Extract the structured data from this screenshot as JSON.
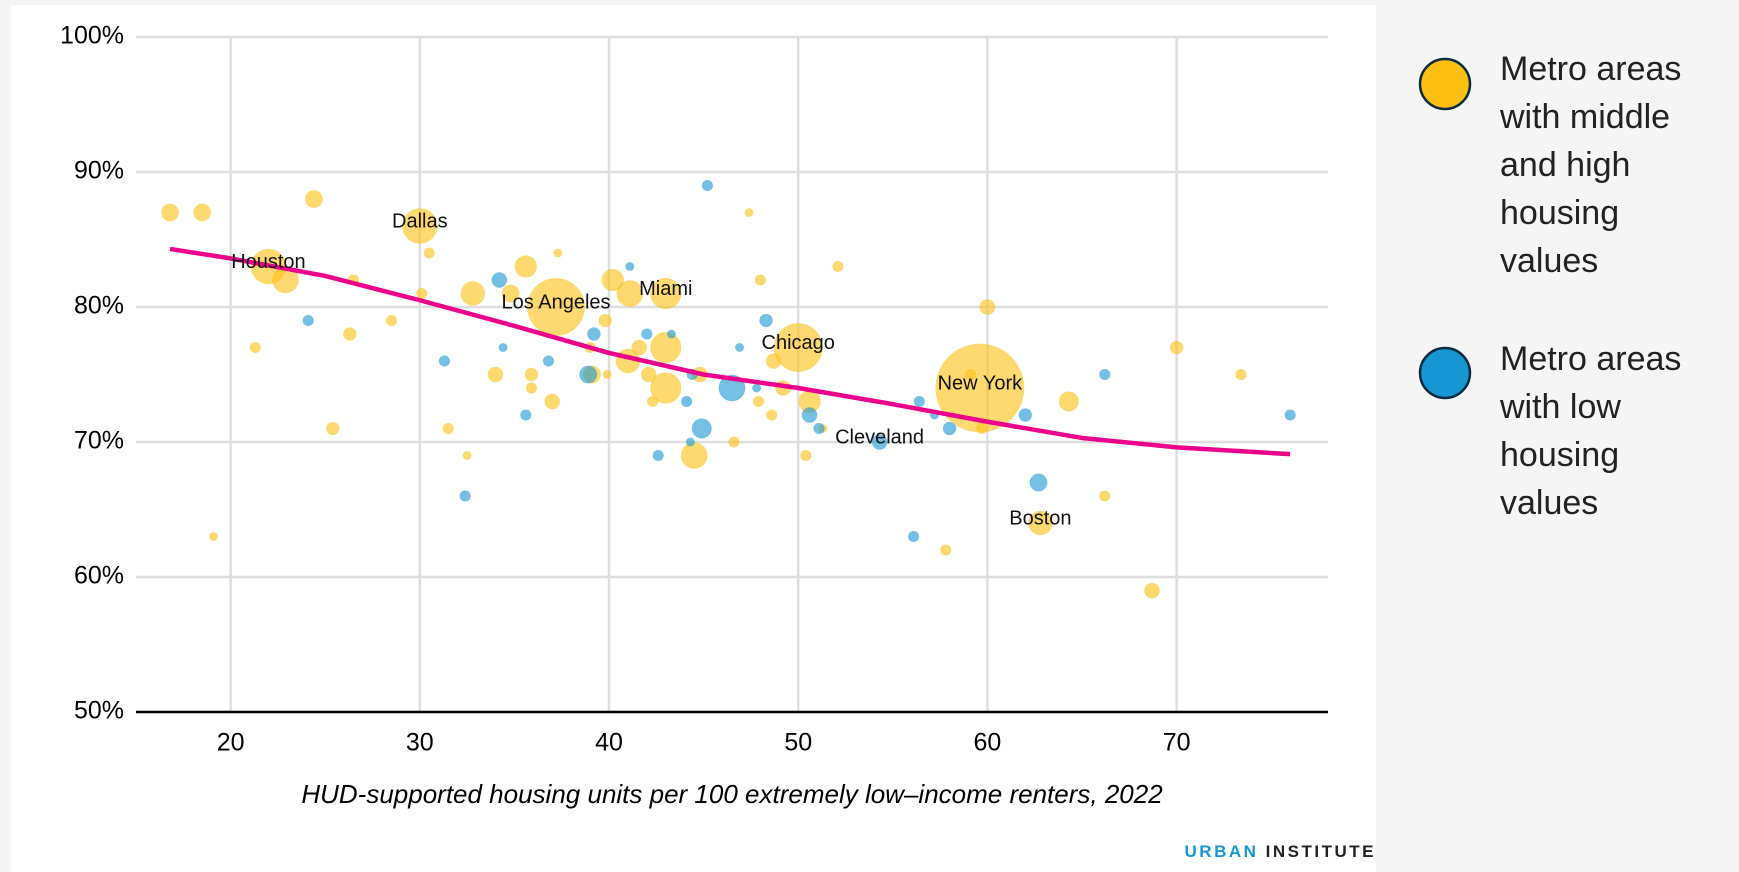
{
  "chart_data": {
    "type": "scatter",
    "x_label": "HUD-supported housing units per 100 extremely low–income renters, 2022",
    "xlim": [
      15,
      78
    ],
    "xticks": [
      20,
      30,
      40,
      50,
      60,
      70
    ],
    "ylim": [
      50,
      100
    ],
    "yticks": [
      {
        "value": 50,
        "label": "50%"
      },
      {
        "value": 60,
        "label": "60%"
      },
      {
        "value": 70,
        "label": "70%"
      },
      {
        "value": 80,
        "label": "80%"
      },
      {
        "value": 90,
        "label": "90%"
      },
      {
        "value": 100,
        "label": "100%"
      }
    ],
    "grid": true,
    "legend": "right",
    "series": [
      {
        "name": "Metro areas with middle and high housing values",
        "color": "#fdbf11",
        "x": [
          16.8,
          18.5,
          24.4,
          19.1,
          21.3,
          22,
          22.9,
          25.4,
          26.3,
          26.5,
          28.5,
          30,
          30.1,
          30.5,
          31.5,
          32.5,
          32.8,
          34,
          34.8,
          35.6,
          35.9,
          35.9,
          37,
          37.3,
          37.2,
          39,
          39.1,
          39.8,
          40.2,
          39.9,
          41.1,
          41,
          41.6,
          42.1,
          42.3,
          43,
          43,
          43,
          44.5,
          44.8,
          46.6,
          47.4,
          47.9,
          48,
          48.7,
          48.6,
          49.2,
          50,
          50.6,
          50.4,
          51.3,
          52.1,
          59.6,
          59.1,
          59.7,
          60,
          62.8,
          64.3,
          66.2,
          68.7,
          70,
          73.4,
          57.8
        ],
        "values": [
          87,
          87,
          88,
          63,
          77,
          83,
          82,
          71,
          78,
          82,
          79,
          86,
          81,
          84,
          71,
          69,
          81,
          75,
          81,
          83,
          75,
          74,
          73,
          84,
          80,
          77,
          75,
          79,
          82,
          75,
          81,
          76,
          77,
          75,
          73,
          77,
          81,
          74,
          69,
          75,
          70,
          87,
          73,
          82,
          76,
          72,
          74,
          77,
          73,
          69,
          71,
          83,
          74,
          75,
          71,
          80,
          64,
          73,
          66,
          59,
          77,
          75,
          62
        ],
        "sizes": [
          64,
          64,
          64,
          16,
          25,
          256,
          144,
          36,
          36,
          25,
          25,
          256,
          25,
          25,
          25,
          16,
          121,
          49,
          64,
          100,
          36,
          25,
          49,
          16,
          676,
          25,
          64,
          36,
          100,
          16,
          144,
          121,
          49,
          49,
          25,
          196,
          196,
          196,
          144,
          49,
          25,
          16,
          25,
          25,
          49,
          25,
          49,
          484,
          100,
          25,
          16,
          25,
          1600,
          25,
          25,
          49,
          121,
          81,
          25,
          49,
          36,
          25,
          25
        ],
        "labels": [
          null,
          null,
          null,
          null,
          null,
          "Houston",
          null,
          null,
          null,
          null,
          null,
          "Dallas",
          null,
          null,
          null,
          null,
          null,
          null,
          null,
          null,
          null,
          null,
          null,
          null,
          "Los Angeles",
          null,
          null,
          null,
          null,
          null,
          null,
          null,
          null,
          null,
          null,
          null,
          "Miami",
          null,
          null,
          null,
          null,
          null,
          null,
          null,
          null,
          null,
          null,
          "Chicago",
          null,
          null,
          null,
          null,
          "New York",
          null,
          null,
          null,
          "Boston",
          null,
          null,
          null,
          null,
          null,
          null
        ]
      },
      {
        "name": "Metro areas with low housing values",
        "color": "#1696d2",
        "x": [
          24.1,
          31.3,
          32.4,
          34.2,
          34.4,
          35.6,
          36.8,
          38.9,
          39.2,
          41.1,
          42,
          43.3,
          44.1,
          44.4,
          44.3,
          42.6,
          44.9,
          45.2,
          46.5,
          46.9,
          47.8,
          48.3,
          50.6,
          51.1,
          54.3,
          56.1,
          56.4,
          57.2,
          58,
          62,
          62.7,
          66.2,
          76
        ],
        "values": [
          79,
          76,
          66,
          82,
          77,
          72,
          76,
          75,
          78,
          83,
          78,
          78,
          73,
          75,
          70,
          69,
          71,
          89,
          74,
          77,
          74,
          79,
          72,
          71,
          70,
          63,
          73,
          72,
          71,
          72,
          67,
          75,
          72
        ],
        "sizes": [
          25,
          25,
          25,
          49,
          16,
          25,
          25,
          64,
          36,
          16,
          25,
          16,
          25,
          25,
          16,
          25,
          81,
          25,
          144,
          16,
          16,
          36,
          49,
          25,
          49,
          25,
          25,
          16,
          36,
          36,
          64,
          25,
          25
        ],
        "labels": [
          null,
          null,
          null,
          null,
          null,
          null,
          null,
          null,
          null,
          null,
          null,
          null,
          null,
          null,
          null,
          null,
          null,
          null,
          null,
          null,
          null,
          null,
          null,
          null,
          "Cleveland",
          null,
          null,
          null,
          null,
          null,
          null,
          null,
          null
        ]
      }
    ],
    "trend": {
      "color": "#ec008b",
      "x": [
        16.8,
        20,
        25,
        30,
        35,
        40,
        45,
        50,
        55,
        60,
        65,
        70,
        76
      ],
      "values": [
        84.3,
        83.6,
        82.3,
        80.5,
        78.6,
        76.6,
        75,
        74,
        72.8,
        71.5,
        70.3,
        69.6,
        69.1
      ]
    }
  },
  "footer": {
    "brand_1": "URBAN",
    "brand_2": "INSTITUTE"
  }
}
